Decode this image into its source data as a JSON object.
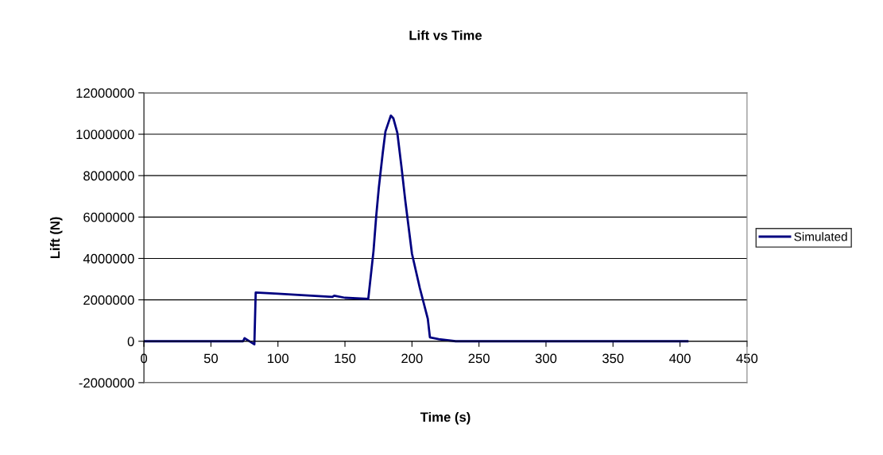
{
  "chart_data": {
    "type": "line",
    "title": "Lift vs Time",
    "xlabel": "Time (s)",
    "ylabel": "Lift (N)",
    "series": [
      {
        "name": "Simulated",
        "color": "#000080",
        "x": [
          0,
          74,
          75.1,
          82.4,
          83.4,
          100,
          120,
          140.5,
          142,
          150,
          167.4,
          171.3,
          173.3,
          175.3,
          178.2,
          180.2,
          184.2,
          186.1,
          189.1,
          192.1,
          195.0,
          200,
          205.9,
          211.8,
          213.4,
          220,
          232.6,
          405.5
        ],
        "values": [
          0,
          0,
          150000,
          -150000,
          2350000,
          2300000,
          2220000,
          2140000,
          2200000,
          2100000,
          2050000,
          4360000,
          6030000,
          7440000,
          9100000,
          10130000,
          10900000,
          10770000,
          10060000,
          8460000,
          6800000,
          4230000,
          2560000,
          1090000,
          190000,
          100000,
          0,
          0
        ]
      }
    ],
    "xlim": [
      0,
      450
    ],
    "xticks": [
      0,
      50,
      100,
      150,
      200,
      250,
      300,
      350,
      400,
      450
    ],
    "ylim": [
      -2000000,
      12000000
    ],
    "yticks": [
      -2000000,
      0,
      2000000,
      4000000,
      6000000,
      8000000,
      10000000,
      12000000
    ],
    "grid": "y",
    "legend": "right",
    "marker": "none",
    "line_style": "solid"
  }
}
